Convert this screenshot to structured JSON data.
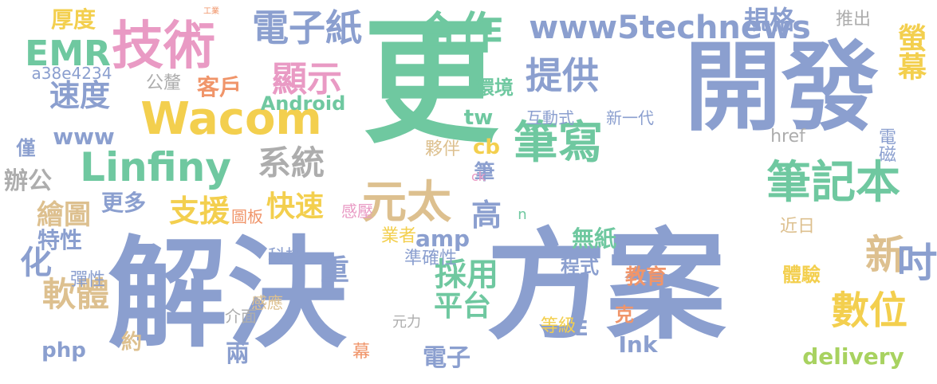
{
  "colors": {
    "blue": "#8b9fcf",
    "green": "#6fc8a0",
    "orange": "#f0956a",
    "pink": "#e99ac4",
    "lime": "#a8d260",
    "yellow": "#f3cf4e",
    "tan": "#ddc08f",
    "gray": "#adadad",
    "background": "#ffffff"
  },
  "words": [
    "解決",
    "方案",
    "開發",
    "更",
    "技術",
    "合作",
    "Wacom",
    "Linfiny",
    "電子紙",
    "筆記本",
    "元太",
    "筆寫",
    "提供",
    "EMR",
    "顯示",
    "www5technews",
    "規格",
    "螢幕",
    "推出",
    "速度",
    "系統",
    "軟體",
    "數位",
    "新",
    "吋",
    "平台",
    "採用",
    "快速",
    "支援",
    "繪圖",
    "化",
    "辦公",
    "特性",
    "delivery",
    "amp",
    "php",
    "Ink",
    "Android",
    "厚度",
    "客戶",
    "更多",
    "無紙",
    "教育",
    "體驗",
    "近日",
    "電磁",
    "cb",
    "tw",
    "href",
    "高",
    "重",
    "夥伴",
    "環境",
    "互動式",
    "新一代",
    "感壓",
    "準確性",
    "業者",
    "科技",
    "圖板",
    "程式",
    "等級",
    "克",
    "E",
    "兩",
    "約",
    "元力",
    "電子",
    "介面",
    "感應",
    "彈性",
    "公釐",
    "a38e4234",
    "www",
    "僅",
    "筆",
    "幕",
    "n",
    "ck",
    "工業"
  ]
}
